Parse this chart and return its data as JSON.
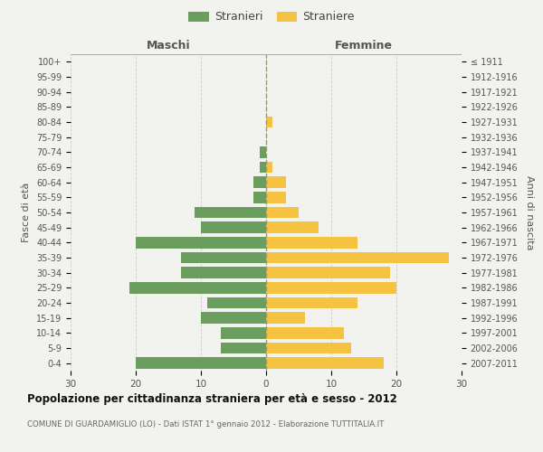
{
  "age_groups": [
    "0-4",
    "5-9",
    "10-14",
    "15-19",
    "20-24",
    "25-29",
    "30-34",
    "35-39",
    "40-44",
    "45-49",
    "50-54",
    "55-59",
    "60-64",
    "65-69",
    "70-74",
    "75-79",
    "80-84",
    "85-89",
    "90-94",
    "95-99",
    "100+"
  ],
  "birth_years": [
    "2007-2011",
    "2002-2006",
    "1997-2001",
    "1992-1996",
    "1987-1991",
    "1982-1986",
    "1977-1981",
    "1972-1976",
    "1967-1971",
    "1962-1966",
    "1957-1961",
    "1952-1956",
    "1947-1951",
    "1942-1946",
    "1937-1941",
    "1932-1936",
    "1927-1931",
    "1922-1926",
    "1917-1921",
    "1912-1916",
    "≤ 1911"
  ],
  "males": [
    20,
    7,
    7,
    10,
    9,
    21,
    13,
    13,
    20,
    10,
    11,
    2,
    2,
    1,
    1,
    0,
    0,
    0,
    0,
    0,
    0
  ],
  "females": [
    18,
    13,
    12,
    6,
    14,
    20,
    19,
    28,
    14,
    8,
    5,
    3,
    3,
    1,
    0,
    0,
    1,
    0,
    0,
    0,
    0
  ],
  "male_color": "#6b9e5e",
  "female_color": "#f5c242",
  "background_color": "#f2f2ee",
  "grid_color": "#cccccc",
  "title": "Popolazione per cittadinanza straniera per età e sesso - 2012",
  "subtitle": "COMUNE DI GUARDAMIGLIO (LO) - Dati ISTAT 1° gennaio 2012 - Elaborazione TUTTITALIA.IT",
  "xlabel_left": "Maschi",
  "xlabel_right": "Femmine",
  "ylabel_left": "Fasce di età",
  "ylabel_right": "Anni di nascita",
  "legend_male": "Stranieri",
  "legend_female": "Straniere",
  "xlim": 30,
  "center_line_color": "#999966"
}
